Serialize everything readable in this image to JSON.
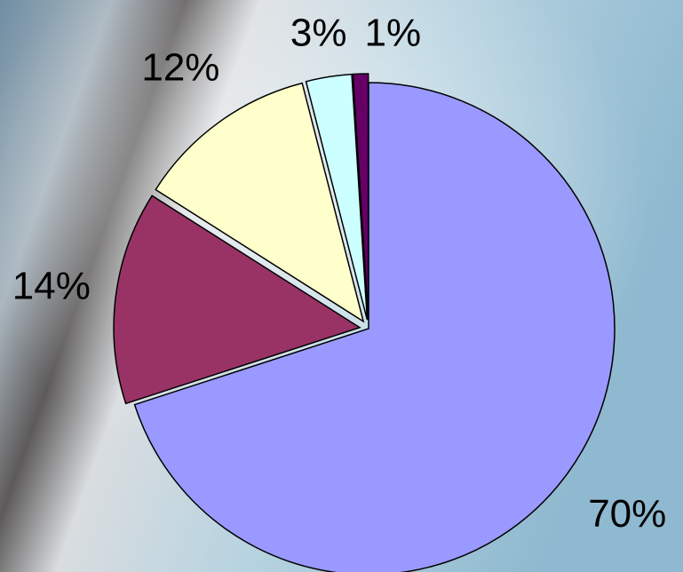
{
  "chart_data": {
    "type": "pie",
    "values": [
      70,
      14,
      12,
      3,
      1
    ],
    "value_labels": [
      "70%",
      "14%",
      "12%",
      "3%",
      "1%"
    ],
    "colors": [
      "#9999ff",
      "#993366",
      "#ffffcc",
      "#ccffff",
      "#660066"
    ]
  }
}
